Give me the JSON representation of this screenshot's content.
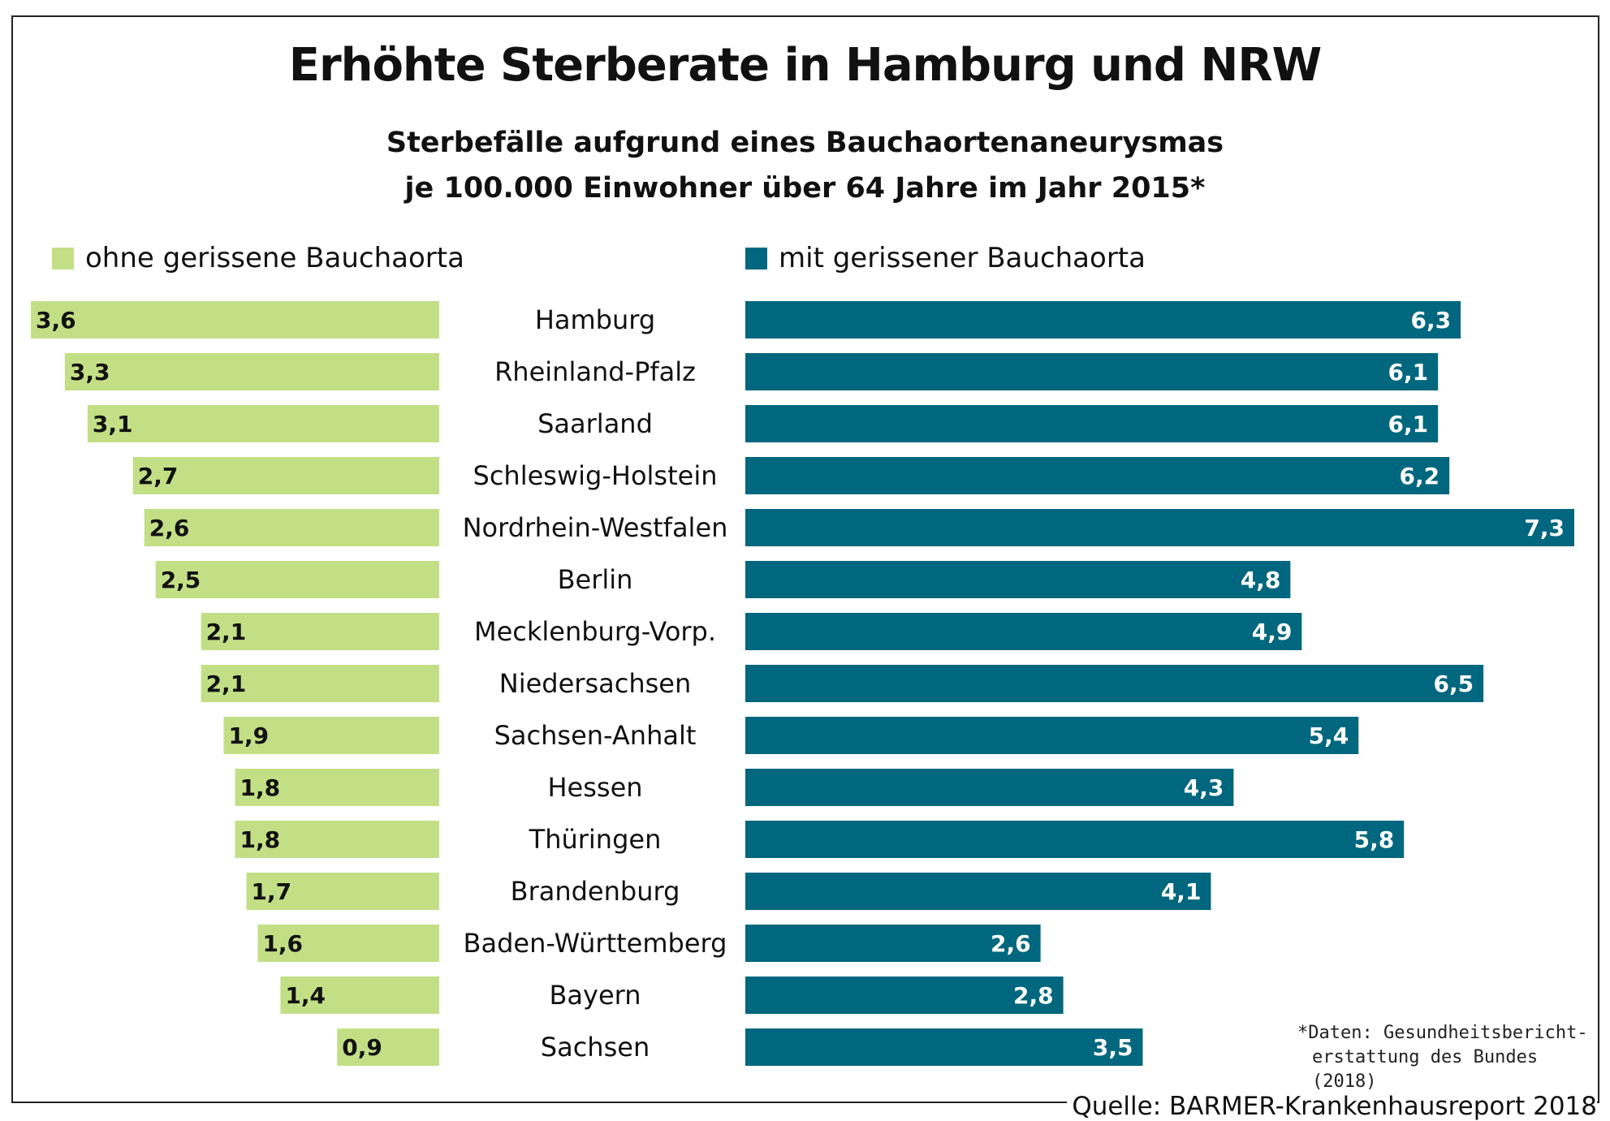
{
  "colors": {
    "left_series": "#c3df86",
    "right_series": "#00677e",
    "left_label_text": "#111111",
    "right_label_text": "#ffffff"
  },
  "footnote": {
    "line1": "*Daten: Gesundheitsbericht-",
    "line2": "erstattung des Bundes (2018)"
  },
  "source": "Quelle: BARMER-Krankenhausreport 2018",
  "chart_data": {
    "type": "bar",
    "title": "Erhöhte Sterberate in Hamburg und NRW",
    "subtitle_line1": "Sterbefälle aufgrund eines Bauchaortenaneurysmas",
    "subtitle_line2": "je 100.000 Einwohner über 64 Jahre im Jahr 2015*",
    "categories": [
      "Hamburg",
      "Rheinland-Pfalz",
      "Saarland",
      "Schleswig-Holstein",
      "Nordrhein-Westfalen",
      "Berlin",
      "Mecklenburg-Vorp.",
      "Niedersachsen",
      "Sachsen-Anhalt",
      "Hessen",
      "Thüringen",
      "Brandenburg",
      "Baden-Württemberg",
      "Bayern",
      "Sachsen"
    ],
    "series": [
      {
        "name": "ohne gerissene Bauchaorta",
        "values": [
          3.6,
          3.3,
          3.1,
          2.7,
          2.6,
          2.5,
          2.1,
          2.1,
          1.9,
          1.8,
          1.8,
          1.7,
          1.6,
          1.4,
          0.9
        ],
        "labels": [
          "3,6",
          "3,3",
          "3,1",
          "2,7",
          "2,6",
          "2,5",
          "2,1",
          "2,1",
          "1,9",
          "1,8",
          "1,8",
          "1,7",
          "1,6",
          "1,4",
          "0,9"
        ]
      },
      {
        "name": "mit gerissener Bauchaorta",
        "values": [
          6.3,
          6.1,
          6.1,
          6.2,
          7.3,
          4.8,
          4.9,
          6.5,
          5.4,
          4.3,
          5.8,
          4.1,
          2.6,
          2.8,
          3.5
        ],
        "labels": [
          "6,3",
          "6,1",
          "6,1",
          "6,2",
          "7,3",
          "4,8",
          "4,9",
          "6,5",
          "5,4",
          "4,3",
          "5,8",
          "4,1",
          "2,6",
          "2,8",
          "3,5"
        ]
      }
    ],
    "legend_position": "top",
    "grid": false
  }
}
